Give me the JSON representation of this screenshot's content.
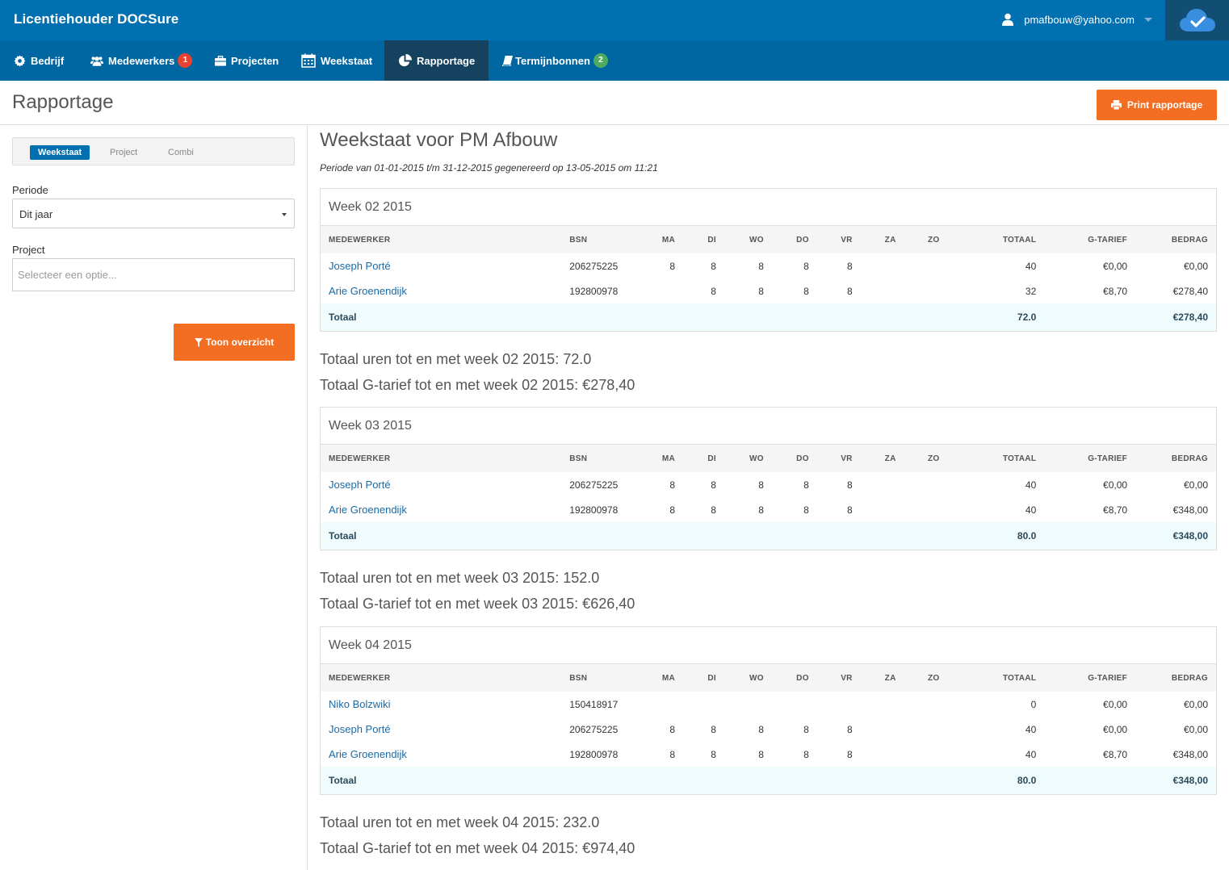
{
  "header": {
    "brand": "Licentiehouder DOCSure",
    "user_email": "pmafbouw@yahoo.com",
    "icons": {
      "user": "user-icon",
      "cloud": "cloud-check-icon"
    }
  },
  "nav": {
    "items": [
      {
        "label": "Bedrijf",
        "icon": "gear-icon"
      },
      {
        "label": "Medewerkers",
        "icon": "users-icon",
        "badge": "1"
      },
      {
        "label": "Projecten",
        "icon": "briefcase-icon"
      },
      {
        "label": "Weekstaat",
        "icon": "calendar-icon"
      },
      {
        "label": "Rapportage",
        "icon": "pie-chart-icon",
        "active": true
      },
      {
        "label": "Termijnbonnen",
        "icon": "book-icon",
        "badge": "2"
      }
    ]
  },
  "page": {
    "title": "Rapportage",
    "print_label": "Print rapportage"
  },
  "sidebar": {
    "tabs": [
      "Weekstaat",
      "Project",
      "Combi"
    ],
    "periode_label": "Periode",
    "periode_value": "Dit jaar",
    "project_label": "Project",
    "project_placeholder": "Selecteer een optie...",
    "show_label": "Toon overzicht"
  },
  "report": {
    "title": "Weekstaat voor PM Afbouw",
    "subtitle": "Periode van 01-01-2015 t/m 31-12-2015 gegenereerd op 13-05-2015 om 11:21",
    "columns": [
      "MEDEWERKER",
      "BSN",
      "MA",
      "DI",
      "WO",
      "DO",
      "VR",
      "ZA",
      "ZO",
      "TOTAAL",
      "G-TARIEF",
      "BEDRAG"
    ],
    "total_label": "Totaal",
    "weeks": [
      {
        "title": "Week 02 2015",
        "rows": [
          {
            "name": "Joseph Porté",
            "bsn": "206275225",
            "ma": "8",
            "di": "8",
            "wo": "8",
            "do": "8",
            "vr": "8",
            "za": "",
            "zo": "",
            "totaal": "40",
            "tarief": "€0,00",
            "bedrag": "€0,00"
          },
          {
            "name": "Arie Groenendijk",
            "bsn": "192800978",
            "ma": "",
            "di": "8",
            "wo": "8",
            "do": "8",
            "vr": "8",
            "za": "",
            "zo": "",
            "totaal": "32",
            "tarief": "€8,70",
            "bedrag": "€278,40"
          }
        ],
        "total_hours": "72.0",
        "total_amount": "€278,40",
        "sum_hours": "Totaal uren tot en met week 02 2015: 72.0",
        "sum_tarief": "Totaal G-tarief tot en met week 02 2015: €278,40"
      },
      {
        "title": "Week 03 2015",
        "rows": [
          {
            "name": "Joseph Porté",
            "bsn": "206275225",
            "ma": "8",
            "di": "8",
            "wo": "8",
            "do": "8",
            "vr": "8",
            "za": "",
            "zo": "",
            "totaal": "40",
            "tarief": "€0,00",
            "bedrag": "€0,00"
          },
          {
            "name": "Arie Groenendijk",
            "bsn": "192800978",
            "ma": "8",
            "di": "8",
            "wo": "8",
            "do": "8",
            "vr": "8",
            "za": "",
            "zo": "",
            "totaal": "40",
            "tarief": "€8,70",
            "bedrag": "€348,00"
          }
        ],
        "total_hours": "80.0",
        "total_amount": "€348,00",
        "sum_hours": "Totaal uren tot en met week 03 2015: 152.0",
        "sum_tarief": "Totaal G-tarief tot en met week 03 2015: €626,40"
      },
      {
        "title": "Week 04 2015",
        "rows": [
          {
            "name": "Niko Bolzwiki",
            "bsn": "150418917",
            "ma": "",
            "di": "",
            "wo": "",
            "do": "",
            "vr": "",
            "za": "",
            "zo": "",
            "totaal": "0",
            "tarief": "€0,00",
            "bedrag": "€0,00"
          },
          {
            "name": "Joseph Porté",
            "bsn": "206275225",
            "ma": "8",
            "di": "8",
            "wo": "8",
            "do": "8",
            "vr": "8",
            "za": "",
            "zo": "",
            "totaal": "40",
            "tarief": "€0,00",
            "bedrag": "€0,00"
          },
          {
            "name": "Arie Groenendijk",
            "bsn": "192800978",
            "ma": "8",
            "di": "8",
            "wo": "8",
            "do": "8",
            "vr": "8",
            "za": "",
            "zo": "",
            "totaal": "40",
            "tarief": "€8,70",
            "bedrag": "€348,00"
          }
        ],
        "total_hours": "80.0",
        "total_amount": "€348,00",
        "sum_hours": "Totaal uren tot en met week 04 2015: 232.0",
        "sum_tarief": "Totaal G-tarief tot en met week 04 2015: €974,40"
      }
    ]
  }
}
